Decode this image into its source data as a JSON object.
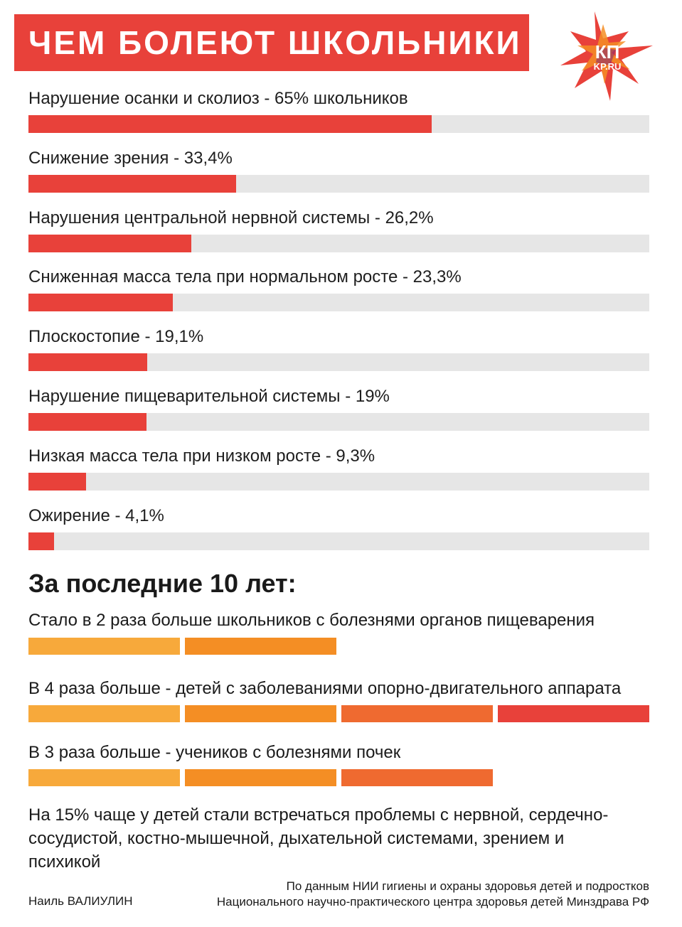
{
  "header": {
    "title": "ЧЕМ БОЛЕЮТ ШКОЛЬНИКИ"
  },
  "logo": {
    "text_top": "КП",
    "text_bottom": "KP.RU",
    "name": "kp-logo-icon"
  },
  "colors": {
    "title_bg": "#e8413a",
    "bar_fill": "#e8413a",
    "bar_track": "#e6e6e6",
    "seg_1": "#f7a93b",
    "seg_2": "#f48e24",
    "seg_3": "#ef6a30",
    "seg_4": "#e8413a"
  },
  "chart_data": {
    "type": "bar",
    "orientation": "horizontal",
    "title": "ЧЕМ БОЛЕЮТ ШКОЛЬНИКИ",
    "unit": "%",
    "xlim": [
      0,
      100
    ],
    "labels": [
      "Нарушение осанки и сколиоз - 65% школьников",
      "Снижение зрения - 33,4%",
      "Нарушения центральной нервной системы - 26,2%",
      "Сниженная масса тела при нормальном росте - 23,3%",
      "Плоскостопие - 19,1%",
      "Нарушение пищеварительной системы - 19%",
      "Низкая масса тела при низком росте - 9,3%",
      "Ожирение - 4,1%"
    ],
    "values": [
      65,
      33.4,
      26.2,
      23.3,
      19.1,
      19,
      9.3,
      4.1
    ]
  },
  "trends": {
    "heading": "За последние 10 лет:",
    "items": [
      {
        "label": "Стало в 2 раза больше школьников с болезнями органов пищеварения",
        "multiplier": 2
      },
      {
        "label": "В 4 раза больше - детей с заболеваниями опорно-двигательного аппарата",
        "multiplier": 4
      },
      {
        "label": "В 3 раза больше - учеников с болезнями почек",
        "multiplier": 3
      }
    ],
    "note": "На 15% чаще у детей стали встречаться проблемы с нервной, сердечно-сосудистой, костно-мышечной, дыхательной системами, зрением и психикой"
  },
  "footer": {
    "author": "Наиль ВАЛИУЛИН",
    "source_line1": "По данным НИИ гигиены и охраны здоровья детей и подростков",
    "source_line2": "Национального научно-практического центра здоровья детей Минздрава РФ"
  }
}
